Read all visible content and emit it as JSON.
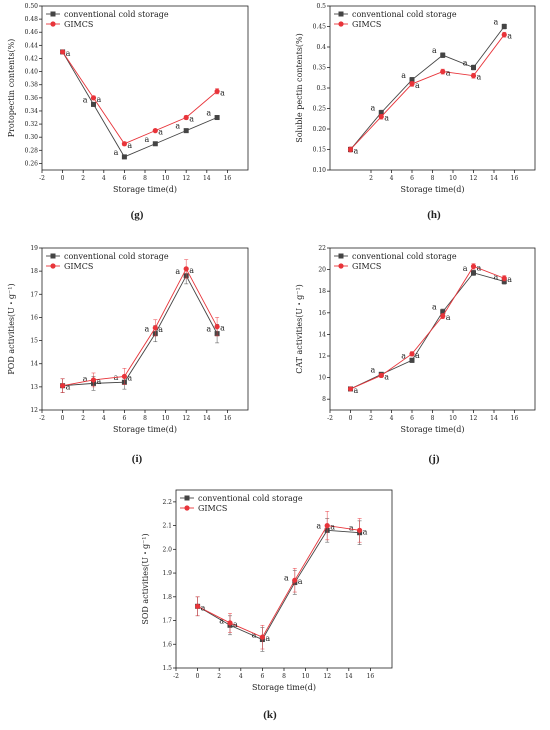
{
  "panels": [
    {
      "id": "g",
      "label": "(g)",
      "chart_data": {
        "type": "line",
        "xlabel": "Storage time(d)",
        "ylabel": "Protopectin contents(%)",
        "xlim": [
          -2,
          18
        ],
        "xticks": [
          -2,
          0,
          2,
          4,
          6,
          8,
          10,
          12,
          14,
          16
        ],
        "ylim": [
          0.25,
          0.5
        ],
        "yticks": [
          0.26,
          0.28,
          0.3,
          0.32,
          0.34,
          0.36,
          0.38,
          0.4,
          0.42,
          0.44,
          0.46,
          0.48,
          0.5
        ],
        "ytick_labels": [
          "0.26",
          "0.28",
          "0.30",
          "0.32",
          "0.34",
          "0.36",
          "0.38",
          "0.40",
          "0.42",
          "0.44",
          "0.46",
          "0.48",
          "0.50"
        ],
        "legend": "top-left",
        "x": [
          0,
          3,
          6,
          9,
          12,
          15
        ],
        "series": [
          {
            "name": "conventional cold storage",
            "color": "#444444",
            "marker": "square",
            "values": [
              0.43,
              0.35,
              0.27,
              0.29,
              0.31,
              0.33
            ],
            "errors": [
              0.002,
              0.003,
              0.003,
              0.002,
              0.002,
              0.002
            ],
            "labels": [
              "",
              "a",
              "a",
              "a",
              "a",
              "a"
            ]
          },
          {
            "name": "GIMCS",
            "color": "#e8343a",
            "marker": "circle",
            "values": [
              0.43,
              0.36,
              0.29,
              0.31,
              0.33,
              0.37
            ],
            "errors": [
              0.002,
              0.003,
              0.003,
              0.002,
              0.003,
              0.004
            ],
            "labels": [
              "a",
              "a",
              "a",
              "a",
              "a",
              "a"
            ]
          }
        ]
      }
    },
    {
      "id": "h",
      "label": "(h)",
      "chart_data": {
        "type": "line",
        "xlabel": "Storage time(d)",
        "ylabel": "Soluble pectin contents(%)",
        "xlim": [
          -2,
          18
        ],
        "xticks": [
          2,
          4,
          6,
          8,
          10,
          12,
          14,
          16
        ],
        "ylim": [
          0.1,
          0.5
        ],
        "yticks": [
          0.1,
          0.15,
          0.2,
          0.25,
          0.3,
          0.35,
          0.4,
          0.45,
          0.5
        ],
        "ytick_labels": [
          "0.10",
          "0.15",
          "0.20",
          "0.25",
          "0.3",
          "0.35",
          "0.4",
          "0.45",
          "0.5"
        ],
        "legend": "top-left",
        "x": [
          0,
          3,
          6,
          9,
          12,
          15
        ],
        "series": [
          {
            "name": "conventional cold storage",
            "color": "#444444",
            "marker": "square",
            "values": [
              0.15,
              0.24,
              0.32,
              0.38,
              0.35,
              0.45
            ],
            "errors": [
              0.006,
              0.006,
              0.006,
              0.006,
              0.006,
              0.006
            ],
            "labels": [
              "",
              "a",
              "a",
              "a",
              "a",
              "a"
            ]
          },
          {
            "name": "GIMCS",
            "color": "#e8343a",
            "marker": "circle",
            "values": [
              0.15,
              0.23,
              0.31,
              0.34,
              0.33,
              0.43
            ],
            "errors": [
              0.006,
              0.006,
              0.006,
              0.006,
              0.006,
              0.006
            ],
            "labels": [
              "a",
              "a",
              "a",
              "a",
              "a",
              "a"
            ]
          }
        ]
      }
    },
    {
      "id": "i",
      "label": "(i)",
      "chart_data": {
        "type": "line",
        "xlabel": "Storage time(d)",
        "ylabel": "POD activities(U・g⁻¹)",
        "xlim": [
          -2,
          18
        ],
        "xticks": [
          -2,
          0,
          2,
          4,
          6,
          8,
          10,
          12,
          14,
          16
        ],
        "ylim": [
          12,
          19
        ],
        "yticks": [
          12,
          13,
          14,
          15,
          16,
          17,
          18,
          19
        ],
        "ytick_labels": [
          "12",
          "13",
          "14",
          "15",
          "16",
          "17",
          "18",
          "19"
        ],
        "legend": "top-left",
        "x": [
          0,
          3,
          6,
          9,
          12,
          15
        ],
        "series": [
          {
            "name": "conventional cold storage",
            "color": "#444444",
            "marker": "square",
            "values": [
              13.05,
              13.15,
              13.2,
              15.3,
              17.8,
              15.3
            ],
            "errors": [
              0.3,
              0.3,
              0.3,
              0.35,
              0.35,
              0.4
            ],
            "labels": [
              "",
              "a",
              "a",
              "a",
              "a",
              "a"
            ]
          },
          {
            "name": "GIMCS",
            "color": "#e8343a",
            "marker": "circle",
            "values": [
              13.05,
              13.3,
              13.45,
              15.55,
              18.1,
              15.6
            ],
            "errors": [
              0.3,
              0.3,
              0.35,
              0.35,
              0.4,
              0.4
            ],
            "labels": [
              "a",
              "a",
              "a",
              "a",
              "a",
              "a"
            ]
          }
        ]
      }
    },
    {
      "id": "j",
      "label": "(j)",
      "chart_data": {
        "type": "line",
        "xlabel": "Storage time(d)",
        "ylabel": "CAT activities(U・g⁻¹)",
        "xlim": [
          -2,
          18
        ],
        "xticks": [
          -2,
          0,
          2,
          4,
          6,
          8,
          10,
          12,
          14,
          16
        ],
        "ylim": [
          7,
          22
        ],
        "yticks": [
          8,
          10,
          12,
          14,
          16,
          18,
          20,
          22
        ],
        "ytick_labels": [
          "8",
          "10",
          "12",
          "14",
          "16",
          "18",
          "20",
          "22"
        ],
        "legend": "top-left",
        "x": [
          0,
          3,
          6,
          9,
          12,
          15
        ],
        "series": [
          {
            "name": "conventional cold storage",
            "color": "#444444",
            "marker": "square",
            "values": [
              8.95,
              10.3,
              11.6,
              16.1,
              19.7,
              18.9
            ],
            "errors": [
              0.15,
              0.2,
              0.2,
              0.25,
              0.25,
              0.25
            ],
            "labels": [
              "",
              "a",
              "a",
              "a",
              "a",
              "a"
            ]
          },
          {
            "name": "GIMCS",
            "color": "#e8343a",
            "marker": "circle",
            "values": [
              8.95,
              10.2,
              12.2,
              15.7,
              20.3,
              19.2
            ],
            "errors": [
              0.15,
              0.2,
              0.2,
              0.25,
              0.25,
              0.25
            ],
            "labels": [
              "a",
              "a",
              "a",
              "a",
              "a",
              "a"
            ]
          }
        ]
      }
    },
    {
      "id": "k",
      "label": "(k)",
      "chart_data": {
        "type": "line",
        "xlabel": "Storage time(d)",
        "ylabel": "SOD activities(U・g⁻¹)",
        "xlim": [
          -2,
          18
        ],
        "xticks": [
          -2,
          0,
          2,
          4,
          6,
          8,
          10,
          12,
          14,
          16
        ],
        "ylim": [
          1.5,
          2.25
        ],
        "yticks": [
          1.5,
          1.6,
          1.7,
          1.8,
          1.9,
          2.0,
          2.1,
          2.2
        ],
        "ytick_labels": [
          "1.5",
          "1.6",
          "1.7",
          "1.8",
          "1.9",
          "2.0",
          "2.1",
          "2.2"
        ],
        "legend": "top-left",
        "x": [
          0,
          3,
          6,
          9,
          12,
          15
        ],
        "series": [
          {
            "name": "conventional cold storage",
            "color": "#444444",
            "marker": "square",
            "values": [
              1.76,
              1.68,
              1.62,
              1.86,
              2.08,
              2.07
            ],
            "errors": [
              0.04,
              0.04,
              0.05,
              0.05,
              0.05,
              0.05
            ],
            "labels": [
              "",
              "a",
              "a",
              "a",
              "a",
              "a"
            ]
          },
          {
            "name": "GIMCS",
            "color": "#e8343a",
            "marker": "circle",
            "values": [
              1.76,
              1.69,
              1.63,
              1.87,
              2.1,
              2.08
            ],
            "errors": [
              0.04,
              0.04,
              0.05,
              0.05,
              0.06,
              0.05
            ],
            "labels": [
              "a",
              "a",
              "a",
              "a",
              "a",
              "a"
            ]
          }
        ]
      }
    }
  ]
}
